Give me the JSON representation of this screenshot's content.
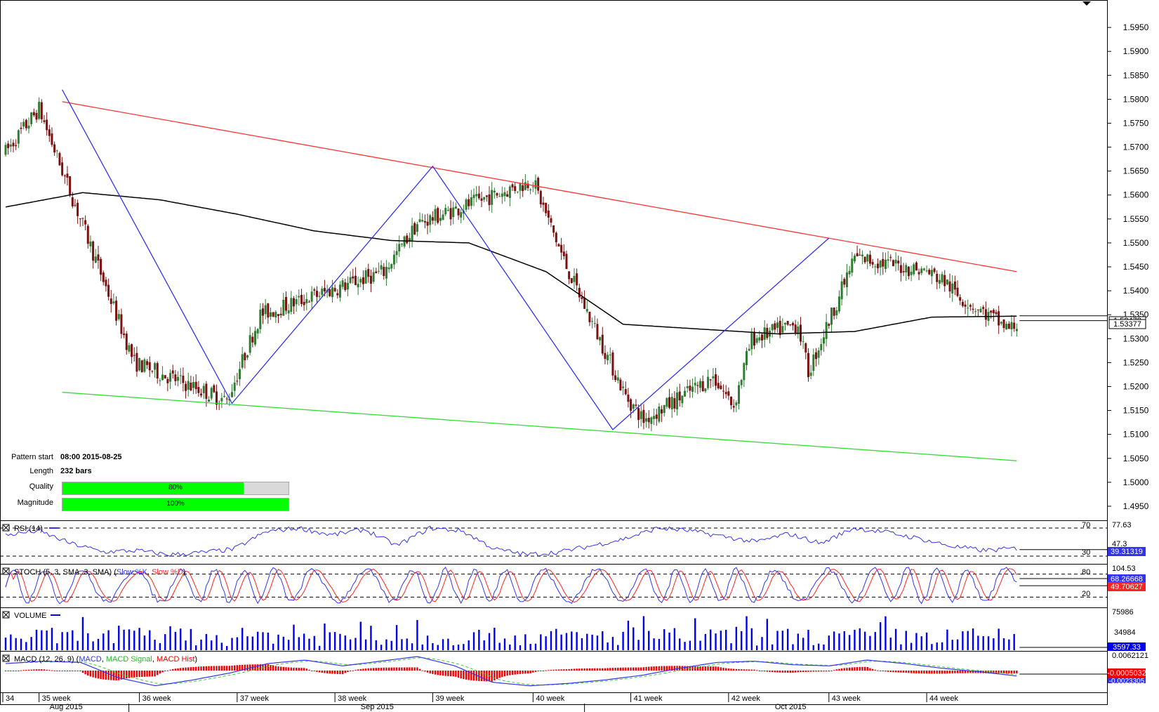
{
  "colors": {
    "bull": "#2e7d32",
    "bear": "#7a1010",
    "moving_average": "#000000",
    "resistance": "#ff3333",
    "support": "#33dd33",
    "pattern_zigzag": "#3333ee",
    "rsi_line": "#3333ee",
    "stoch_k": "#3333ee",
    "stoch_d": "#ff2222",
    "volume_bars": "#0000ee",
    "macd_line": "#3333ee",
    "macd_signal": "#33cc33",
    "macd_hist": "#ee0000",
    "quality_fill": "#00ff00"
  },
  "pattern_info": {
    "start_label": "Pattern start",
    "start_value": "08:00 2015-08-25",
    "length_label": "Length",
    "length_value": "232 bars",
    "quality_label": "Quality",
    "quality_value": "80%",
    "quality_fraction": 0.8,
    "magnitude_label": "Magnitude",
    "magnitude_value": "100%",
    "magnitude_fraction": 1.0
  },
  "chart_data": {
    "type": "candlestick",
    "price_axis": {
      "ticks": [
        "1.5950",
        "1.5900",
        "1.5850",
        "1.5800",
        "1.5750",
        "1.5700",
        "1.5650",
        "1.5600",
        "1.5550",
        "1.5500",
        "1.5450",
        "1.5400",
        "1.5350",
        "1.5300",
        "1.5250",
        "1.5200",
        "1.5150",
        "1.5100",
        "1.5050",
        "1.5000",
        "1.4950"
      ],
      "ylim": [
        1.4925,
        1.6
      ],
      "last_price_labels": [
        "1.53478",
        "1.53377"
      ]
    },
    "x_week_labels": [
      "34",
      "35 week",
      "36 week",
      "37 week",
      "38 week",
      "39 week",
      "40 week",
      "41 week",
      "42 week",
      "43 week",
      "44 week"
    ],
    "x_month_labels": [
      "Aug 2015",
      "Sep 2015",
      "Oct 2015"
    ],
    "price_path_bars": [
      0,
      13,
      50,
      86,
      99,
      147,
      160,
      205,
      218,
      241,
      248
    ],
    "price_path_values": [
      1.569,
      1.578,
      1.525,
      1.517,
      1.535,
      1.544,
      1.554,
      1.563,
      1.545,
      1.518,
      1.513
    ],
    "price_path_bars_2": [
      248,
      275,
      283,
      290,
      308,
      312,
      330,
      358,
      365,
      370,
      390,
      393
    ],
    "price_path_values_2": [
      1.513,
      1.522,
      1.516,
      1.53,
      1.533,
      1.523,
      1.547,
      1.544,
      1.542,
      1.539,
      1.532,
      1.533
    ],
    "moving_average": {
      "bars": [
        0,
        30,
        60,
        90,
        120,
        150,
        180,
        210,
        240,
        270,
        300,
        330,
        360,
        393
      ],
      "values": [
        1.5575,
        1.5605,
        1.559,
        1.556,
        1.5525,
        1.5505,
        1.55,
        1.544,
        1.533,
        1.532,
        1.531,
        1.5315,
        1.5345,
        1.5347
      ]
    },
    "resistance_line": {
      "bars": [
        22,
        393
      ],
      "values": [
        1.5795,
        1.544
      ]
    },
    "support_line": {
      "bars": [
        22,
        393
      ],
      "values": [
        1.5188,
        1.5045
      ]
    },
    "pattern_zigzag": {
      "bars": [
        22,
        88,
        166,
        236,
        320
      ],
      "values": [
        1.582,
        1.5165,
        1.566,
        1.511,
        1.551
      ]
    },
    "total_bars": 394,
    "rsi": {
      "title": "RSI (14)",
      "levels": [
        "70",
        "30"
      ],
      "top_label": "77.63",
      "mid_label": "47.3",
      "value_label": "39.31319",
      "anchor_values": [
        60,
        66,
        48,
        36,
        38,
        32,
        35,
        40,
        65,
        70,
        60,
        68,
        45,
        70,
        66,
        40,
        32,
        36,
        45,
        55,
        70,
        66,
        58,
        50,
        62,
        48,
        70,
        64,
        55,
        44,
        38,
        41
      ]
    },
    "stochastic": {
      "title": "STOCH (5, 3, SMA, 3, SMA)",
      "series_labels": [
        "Slow %K",
        "Slow %D"
      ],
      "levels": [
        "80",
        "20"
      ],
      "top_label": "104.53",
      "value_label_k": "68.26668",
      "value_label_d": "49.70627"
    },
    "volume": {
      "title": "VOLUME",
      "top_label": "75986",
      "mid_label": "34984",
      "value_label": "3597.33"
    },
    "macd": {
      "title": "MACD (12, 26, 9)",
      "series_labels": [
        "MACD",
        "MACD Signal",
        "MACD Hist"
      ],
      "top_label": "0.0062121",
      "value_label_main": "-0.0005032",
      "value_label_low": "-0.0023305",
      "anchor_values": [
        0.003,
        0.004,
        0.0035,
        -0.003,
        -0.0065,
        -0.004,
        -0.001,
        0.003,
        0.0045,
        0.002,
        0.004,
        0.006,
        0.002,
        -0.005,
        -0.0065,
        -0.0055,
        -0.004,
        -0.002,
        0.001,
        0.0035,
        0.004,
        0.0025,
        0.002,
        0.0045,
        0.003,
        0.001,
        -0.0005,
        -0.0023
      ]
    }
  }
}
